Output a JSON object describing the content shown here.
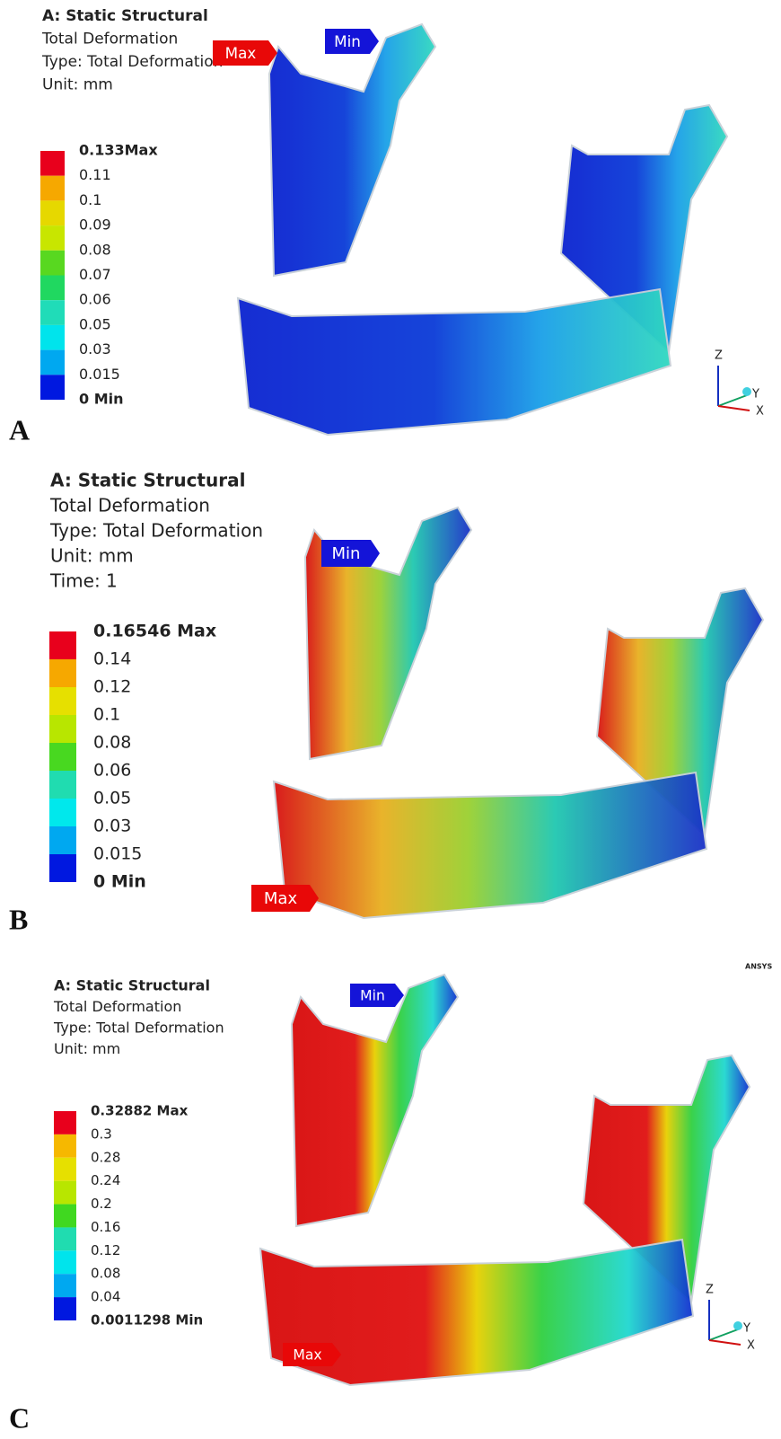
{
  "panels": [
    {
      "letter": "A",
      "title": "A: Static Structural",
      "lines": [
        "Total Deformation",
        "Type: Total Deformation",
        "Unit: mm"
      ],
      "legend": {
        "labels": [
          "0.133Max",
          "0.11",
          "0.1",
          "0.09",
          "0.08",
          "0.07",
          "0.06",
          "0.05",
          "0.03",
          "0.015",
          "0 Min"
        ],
        "colors": [
          "#e8001c",
          "#f6a800",
          "#e6d800",
          "#c8e600",
          "#58d820",
          "#20d860",
          "#20dcb8",
          "#00e4ec",
          "#00a8f0",
          "#0018e0"
        ]
      },
      "max_tag": "Max",
      "min_tag": "Min",
      "axes": [
        "Z",
        "Y",
        "X"
      ]
    },
    {
      "letter": "B",
      "title": "A: Static Structural",
      "lines": [
        "Total Deformation",
        "Type: Total Deformation",
        "Unit: mm",
        "Time: 1"
      ],
      "legend": {
        "labels": [
          "0.16546 Max",
          "0.14",
          "0.12",
          "0.1",
          "0.08",
          "0.06",
          "0.05",
          "0.03",
          "0.015",
          "0 Min"
        ],
        "colors": [
          "#e8001c",
          "#f6a800",
          "#e6e000",
          "#b8e600",
          "#48d820",
          "#20dcb0",
          "#00e8ec",
          "#00a8f0",
          "#0018e0"
        ]
      },
      "max_tag": "Max",
      "min_tag": "Min"
    },
    {
      "letter": "C",
      "title": "A: Static Structural",
      "lines": [
        "Total Deformation",
        "Type: Total Deformation",
        "Unit: mm"
      ],
      "legend": {
        "labels": [
          "0.32882 Max",
          "0.3",
          "0.28",
          "0.24",
          "0.2",
          "0.16",
          "0.12",
          "0.08",
          "0.04",
          "0.0011298 Min"
        ],
        "colors": [
          "#e8001c",
          "#f6b800",
          "#e6e000",
          "#b8e600",
          "#40d820",
          "#20dcb0",
          "#00e4ec",
          "#00a8f0",
          "#0018e0"
        ]
      },
      "max_tag": "Max",
      "min_tag": "Min",
      "axes": [
        "Z",
        "Y",
        "X"
      ],
      "logo": "ANSYS"
    }
  ]
}
